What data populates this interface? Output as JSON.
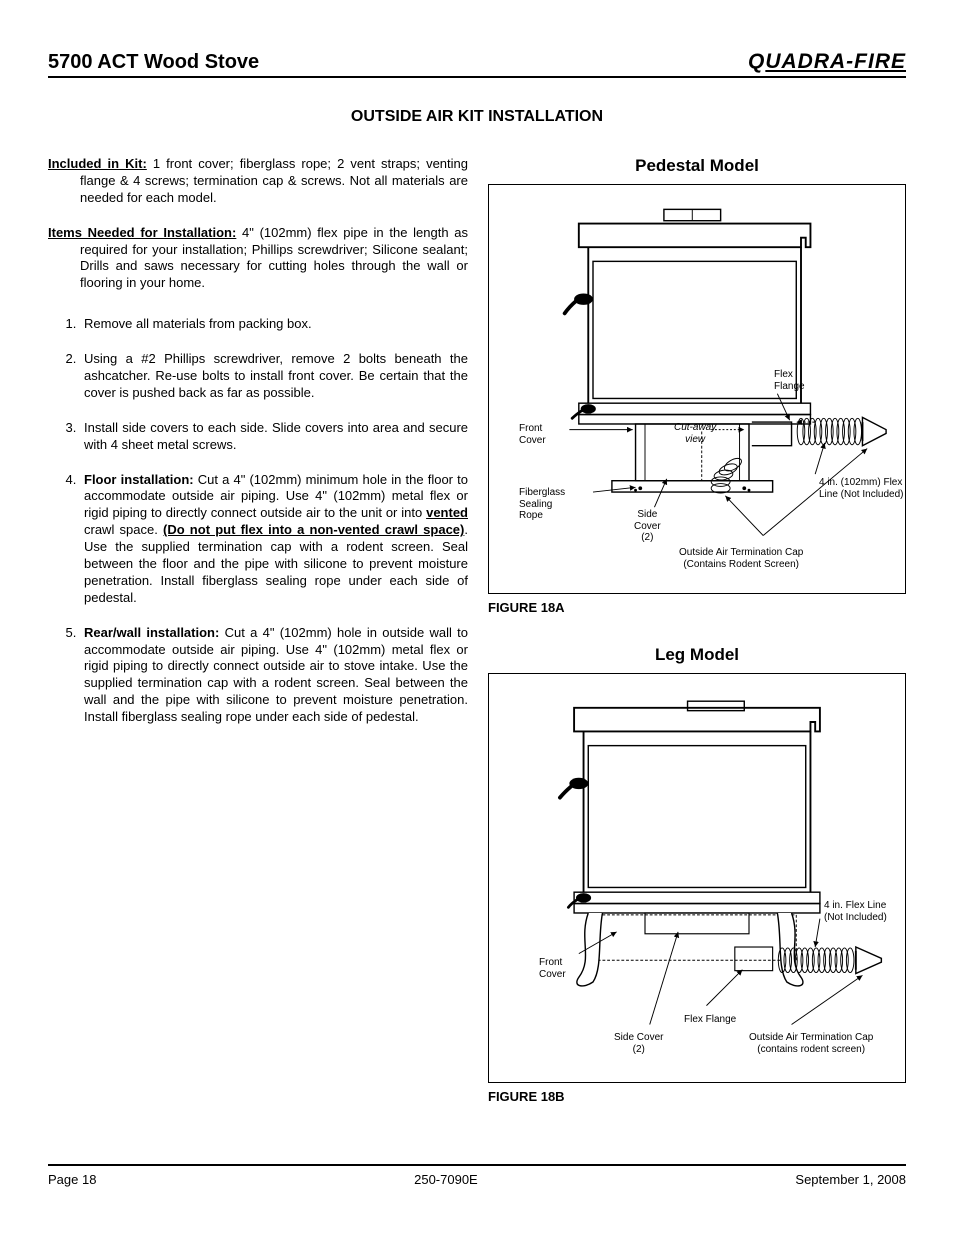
{
  "header": {
    "title": "5700 ACT Wood Stove",
    "brand_pre": "Q",
    "brand_rest": "uadra-Fire"
  },
  "section_title": "OUTSIDE AIR KIT INSTALLATION",
  "kit_included": {
    "label": "Included in Kit:",
    "text": " 1 front cover; fiberglass rope; 2 vent straps; venting flange & 4 screws; termination cap & screws.  Not all materials are needed for each model."
  },
  "items_needed": {
    "label": "Items Needed for Installation:",
    "text": " 4\" (102mm)  flex pipe in the length as required for your installation; Phillips screwdriver; Silicone sealant; Drills and saws necessary for cutting holes through the wall or flooring in your home."
  },
  "steps": [
    {
      "html": "Remove all materials from packing box."
    },
    {
      "html": "Using a #2 Phillips screwdriver, remove 2 bolts beneath the ashcatcher.  Re-use bolts to install front cover.  Be certain that the cover is pushed back as far as possible."
    },
    {
      "html": "Install side covers to each side. Slide covers into area and secure with 4 sheet metal screws."
    },
    {
      "html": "<span class=\"b\">Floor installation:</span> Cut a 4\" (102mm) minimum hole in the floor to accommodate outside air piping.  Use 4\" (102mm) metal flex or rigid piping to directly connect outside air to the unit or into <span class=\"u\">vented</span> crawl space. <span class=\"u\">(Do not put flex into a non-vented crawl space)</span>. Use the supplied termination cap with a rodent screen.  Seal between the floor and the pipe with silicone to prevent moisture penetration.  Install fiberglass sealing rope under each side of pedestal."
    },
    {
      "html": "<span class=\"b\">Rear/wall installation:</span>  Cut a 4\" (102mm) hole in outside wall to accommodate outside air piping.  Use 4\" (102mm) metal flex or rigid piping to directly connect outside air to stove intake.  Use the supplied termination cap with a rodent screen.  Seal between the wall and the pipe with silicone to prevent moisture penetration.  Install fiberglass sealing rope under each side of pedestal."
    }
  ],
  "figure_a": {
    "title": "Pedestal Model",
    "caption": "FIGURE 18A",
    "labels": {
      "flex_flange": "Flex\nFlange",
      "front_cover": "Front\nCover",
      "cutaway": "Cut-away\nview",
      "fiberglass": "Fiberglass\nSealing\nRope",
      "side_cover": "Side\nCover\n(2)",
      "flex_line": "4 in. (102mm) Flex\nLine (Not Included)",
      "term_cap": "Outside Air Termination Cap\n(Contains Rodent Screen)"
    }
  },
  "figure_b": {
    "title": "Leg Model",
    "caption": "FIGURE 18B",
    "labels": {
      "flex_line": "4 in. Flex Line\n(Not Included)",
      "front_cover": "Front\nCover",
      "flex_flange": "Flex Flange",
      "side_cover": "Side Cover\n(2)",
      "term_cap": "Outside Air Termination Cap\n(contains rodent screen)"
    }
  },
  "footer": {
    "page": "Page 18",
    "docnum": "250-7090E",
    "date": "September 1, 2008"
  }
}
